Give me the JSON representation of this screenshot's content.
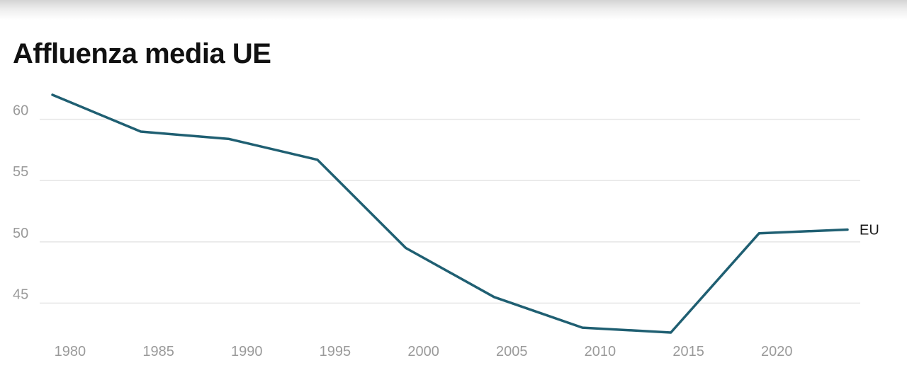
{
  "chart_data": {
    "type": "line",
    "title": "Affluenza media UE",
    "xlabel": "",
    "ylabel": "",
    "xlim": [
      1979,
      2024
    ],
    "ylim": [
      42.6,
      62
    ],
    "x_ticks": [
      1980,
      1985,
      1990,
      1995,
      2000,
      2005,
      2010,
      2015,
      2020
    ],
    "y_ticks": [
      45,
      50,
      55,
      60
    ],
    "grid": "horizontal",
    "colors": {
      "line": "#1f5f72",
      "grid": "#e6e6e6",
      "tick": "#9a9a9a"
    },
    "series": [
      {
        "name": "EU",
        "x": [
          1979,
          1984,
          1989,
          1994,
          1999,
          2004,
          2009,
          2014,
          2019,
          2024
        ],
        "values": [
          62.0,
          59.0,
          58.4,
          56.7,
          49.5,
          45.5,
          43.0,
          42.6,
          50.7,
          51.0
        ]
      }
    ]
  }
}
